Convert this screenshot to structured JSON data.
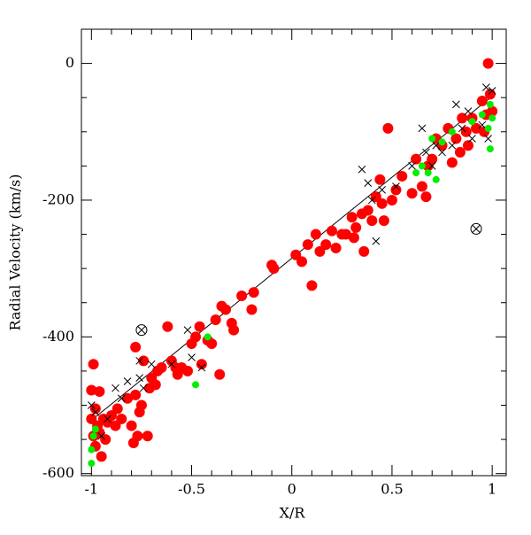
{
  "chart_data": {
    "type": "scatter",
    "xlabel": "X/R",
    "ylabel": "Radial Velocity (km/s)",
    "xlim": [
      -1.05,
      1.07
    ],
    "ylim": [
      -603,
      50
    ],
    "xticks": [
      -1,
      -0.5,
      0,
      0.5,
      1
    ],
    "yticks": [
      -600,
      -400,
      -200,
      0
    ],
    "xticks_minor": [
      -0.9,
      -0.8,
      -0.7,
      -0.6,
      -0.4,
      -0.3,
      -0.2,
      -0.1,
      0.1,
      0.2,
      0.3,
      0.4,
      0.6,
      0.7,
      0.8,
      0.9
    ],
    "yticks_minor": [
      -550,
      -500,
      -450,
      -350,
      -300,
      -250,
      -150,
      -100,
      -50
    ],
    "series": [
      {
        "marker": "line",
        "color": "#000000",
        "x": [
          -1,
          1
        ],
        "values": [
          -522,
          -48
        ]
      },
      {
        "marker": "circle",
        "color": "#ff0000",
        "x": [
          -1.0,
          -0.99,
          -0.98,
          -1.0,
          -0.97,
          -0.99,
          -0.98,
          -0.95,
          -0.96,
          -0.94,
          -0.93,
          -0.96,
          -0.92,
          -0.9,
          -0.88,
          -0.87,
          -0.85,
          -0.82,
          -0.8,
          -0.79,
          -0.78,
          -0.77,
          -0.76,
          -0.75,
          -0.72,
          -0.71,
          -0.7,
          -0.68,
          -0.67,
          -0.65,
          -0.62,
          -0.6,
          -0.58,
          -0.57,
          -0.55,
          -0.52,
          -0.5,
          -0.48,
          -0.46,
          -0.45,
          -0.42,
          -0.4,
          -0.38,
          -0.36,
          -0.35,
          -0.33,
          -0.3,
          -0.29,
          -0.25,
          -0.2,
          -0.19,
          -0.1,
          -0.09,
          0.02,
          0.05,
          0.08,
          0.1,
          0.12,
          0.14,
          0.17,
          0.2,
          0.22,
          0.25,
          0.27,
          0.3,
          0.31,
          0.32,
          0.35,
          0.36,
          0.38,
          0.4,
          0.42,
          0.44,
          0.45,
          0.46,
          0.48,
          0.5,
          0.52,
          0.55,
          0.6,
          0.62,
          0.65,
          0.67,
          0.68,
          0.7,
          0.72,
          0.75,
          0.78,
          0.8,
          0.82,
          0.84,
          0.85,
          0.87,
          0.88,
          0.9,
          0.92,
          0.95,
          0.96,
          0.97,
          0.98,
          0.99,
          1.0,
          -0.78,
          -0.74
        ],
        "values": [
          -478,
          -440,
          -505,
          -520,
          -530,
          -545,
          -560,
          -575,
          -540,
          -520,
          -550,
          -480,
          -525,
          -515,
          -530,
          -505,
          -520,
          -490,
          -530,
          -555,
          -485,
          -545,
          -510,
          -500,
          -545,
          -475,
          -460,
          -470,
          -450,
          -445,
          -385,
          -435,
          -445,
          -455,
          -445,
          -450,
          -410,
          -400,
          -385,
          -440,
          -405,
          -410,
          -375,
          -455,
          -355,
          -360,
          -380,
          -390,
          -340,
          -360,
          -335,
          -295,
          -300,
          -280,
          -290,
          -265,
          -325,
          -250,
          -275,
          -265,
          -245,
          -270,
          -250,
          -250,
          -225,
          -255,
          -240,
          -220,
          -275,
          -215,
          -230,
          -195,
          -170,
          -205,
          -230,
          -95,
          -200,
          -185,
          -165,
          -190,
          -140,
          -180,
          -195,
          -150,
          -140,
          -110,
          -120,
          -95,
          -145,
          -110,
          -130,
          -80,
          -100,
          -120,
          -80,
          -95,
          -55,
          -100,
          -75,
          0,
          -45,
          -70,
          -415,
          -435
        ]
      },
      {
        "marker": "x",
        "color": "#000000",
        "x": [
          -1,
          -0.98,
          -0.95,
          -0.92,
          -0.88,
          -0.85,
          -0.82,
          -0.76,
          -0.76,
          -0.74,
          -0.7,
          -0.6,
          -0.52,
          -0.5,
          -0.45,
          0.38,
          0.35,
          0.4,
          0.45,
          0.52,
          0.42,
          0.6,
          0.65,
          0.67,
          0.7,
          0.72,
          0.75,
          0.8,
          0.82,
          0.85,
          0.9,
          0.95,
          0.97,
          0.98,
          1.0,
          0.88
        ],
        "values": [
          -500,
          -510,
          -545,
          -520,
          -475,
          -490,
          -465,
          -435,
          -460,
          -475,
          -440,
          -440,
          -390,
          -430,
          -445,
          -175,
          -155,
          -200,
          -185,
          -180,
          -260,
          -150,
          -95,
          -130,
          -150,
          -120,
          -130,
          -120,
          -60,
          -95,
          -110,
          -90,
          -35,
          -110,
          -40,
          -70
        ]
      },
      {
        "marker": "dot",
        "color": "#00ee00",
        "x": [
          -1,
          -1,
          -0.99,
          -0.98,
          -0.42,
          -0.48,
          0.62,
          0.65,
          0.68,
          0.7,
          0.72,
          0.75,
          0.8,
          0.9,
          0.95,
          0.99,
          1.0,
          0.99,
          0.98
        ],
        "values": [
          -585,
          -565,
          -545,
          -535,
          -400,
          -470,
          -160,
          -150,
          -160,
          -110,
          -170,
          -115,
          -100,
          -85,
          -75,
          -60,
          -80,
          -125,
          -95
        ]
      },
      {
        "marker": "circle-x",
        "color": "#000000",
        "x": [
          -0.75,
          0.92
        ],
        "values": [
          -390,
          -242
        ]
      }
    ]
  }
}
